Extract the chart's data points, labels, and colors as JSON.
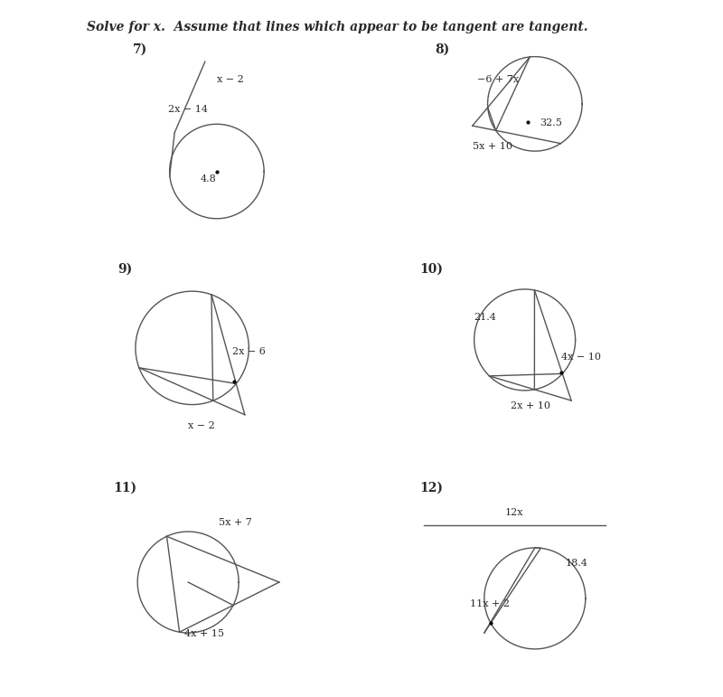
{
  "title": "Solve for x.  Assume that lines which appear to be tangent are tangent.",
  "background": "#ffffff",
  "text_color": "#2a2a2a",
  "problems": [
    {
      "number": "7)",
      "labels": [
        "x − 2",
        "2x − 14",
        "4.8"
      ],
      "type": "tangent_secant_external"
    },
    {
      "number": "8)",
      "labels": [
        "−6 + 7x",
        "32.5",
        "5x + 10"
      ],
      "type": "two_secants_external"
    },
    {
      "number": "9)",
      "labels": [
        "2x − 6",
        "x − 2"
      ],
      "type": "two_chords"
    },
    {
      "number": "10)",
      "labels": [
        "21.4",
        "4x − 10",
        "2x + 10"
      ],
      "type": "two_secants_external2"
    },
    {
      "number": "11)",
      "labels": [
        "5x + 7",
        "4x + 15"
      ],
      "type": "tangent_secant_external2"
    },
    {
      "number": "12)",
      "labels": [
        "12x",
        "18.4",
        "11x + 2"
      ],
      "type": "secant_tangent"
    }
  ]
}
